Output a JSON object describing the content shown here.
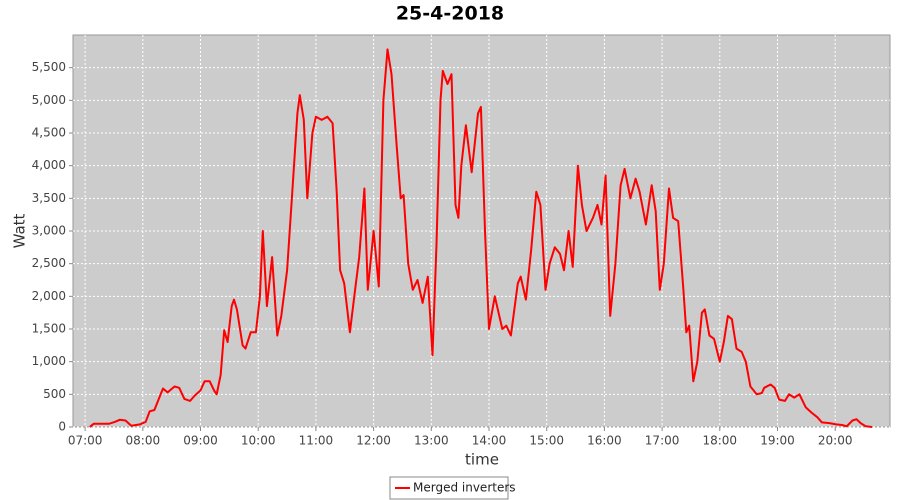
{
  "chart_data": {
    "type": "line",
    "title": "25-4-2018",
    "xlabel": "time",
    "ylabel": "Watt",
    "x": [
      7.08,
      7.15,
      7.25,
      7.42,
      7.52,
      7.6,
      7.7,
      7.8,
      7.95,
      8.05,
      8.12,
      8.2,
      8.3,
      8.35,
      8.43,
      8.55,
      8.63,
      8.72,
      8.82,
      8.9,
      9.0,
      9.07,
      9.16,
      9.24,
      9.28,
      9.35,
      9.41,
      9.47,
      9.54,
      9.58,
      9.63,
      9.73,
      9.78,
      9.87,
      9.96,
      10.03,
      10.08,
      10.15,
      10.24,
      10.33,
      10.4,
      10.5,
      10.59,
      10.68,
      10.72,
      10.79,
      10.85,
      10.94,
      11.0,
      11.1,
      11.2,
      11.29,
      11.36,
      11.42,
      11.49,
      11.59,
      11.68,
      11.75,
      11.84,
      11.9,
      12.0,
      12.09,
      12.17,
      12.24,
      12.31,
      12.4,
      12.47,
      12.52,
      12.6,
      12.68,
      12.76,
      12.85,
      12.94,
      13.02,
      13.09,
      13.16,
      13.2,
      13.28,
      13.35,
      13.42,
      13.47,
      13.52,
      13.6,
      13.7,
      13.81,
      13.86,
      13.93,
      14.0,
      14.1,
      14.23,
      14.3,
      14.38,
      14.5,
      14.55,
      14.64,
      14.73,
      14.82,
      14.89,
      14.98,
      15.05,
      15.14,
      15.23,
      15.3,
      15.38,
      15.45,
      15.54,
      15.61,
      15.69,
      15.8,
      15.88,
      15.95,
      16.02,
      16.1,
      16.19,
      16.28,
      16.35,
      16.45,
      16.54,
      16.61,
      16.72,
      16.82,
      16.89,
      16.96,
      17.03,
      17.12,
      17.19,
      17.28,
      17.37,
      17.42,
      17.47,
      17.54,
      17.61,
      17.69,
      17.74,
      17.82,
      17.9,
      18.0,
      18.07,
      18.14,
      18.21,
      18.29,
      18.38,
      18.45,
      18.53,
      18.64,
      18.73,
      18.77,
      18.88,
      18.95,
      19.03,
      19.13,
      19.2,
      19.29,
      19.38,
      19.49,
      19.59,
      19.69,
      19.77,
      19.9,
      20.02,
      20.12,
      20.2,
      20.3,
      20.37,
      20.44,
      20.53,
      20.64
    ],
    "series": [
      {
        "name": "Merged inverters",
        "color": "#ff0000",
        "values": [
          0,
          50,
          50,
          50,
          80,
          110,
          100,
          20,
          40,
          80,
          240,
          260,
          480,
          590,
          530,
          620,
          600,
          430,
          400,
          480,
          560,
          700,
          700,
          550,
          500,
          800,
          1480,
          1300,
          1850,
          1950,
          1800,
          1250,
          1200,
          1450,
          1450,
          2000,
          3000,
          1850,
          2600,
          1400,
          1700,
          2400,
          3600,
          4800,
          5080,
          4700,
          3500,
          4500,
          4750,
          4700,
          4750,
          4650,
          3600,
          2400,
          2200,
          1450,
          2100,
          2600,
          3650,
          2100,
          3000,
          2150,
          5000,
          5780,
          5400,
          4300,
          3500,
          3550,
          2500,
          2100,
          2250,
          1900,
          2300,
          1100,
          2800,
          5000,
          5450,
          5250,
          5400,
          3400,
          3200,
          4000,
          4620,
          3900,
          4800,
          4900,
          3000,
          1500,
          2000,
          1500,
          1550,
          1400,
          2200,
          2300,
          1950,
          2700,
          3600,
          3400,
          2100,
          2500,
          2750,
          2650,
          2400,
          3000,
          2450,
          4000,
          3400,
          3000,
          3200,
          3400,
          3100,
          3850,
          1700,
          2500,
          3700,
          3950,
          3500,
          3800,
          3600,
          3100,
          3700,
          3300,
          2100,
          2500,
          3650,
          3200,
          3150,
          2100,
          1450,
          1550,
          700,
          1000,
          1750,
          1800,
          1400,
          1350,
          1000,
          1300,
          1700,
          1650,
          1200,
          1150,
          1000,
          620,
          500,
          520,
          600,
          650,
          600,
          420,
          400,
          500,
          450,
          500,
          300,
          220,
          150,
          70,
          60,
          40,
          30,
          10,
          100,
          120,
          60,
          10,
          0
        ]
      }
    ],
    "xlim": [
      6.79,
      20.95
    ],
    "xticks": [
      {
        "value": 7,
        "label": "07:00"
      },
      {
        "value": 8,
        "label": "08:00"
      },
      {
        "value": 9,
        "label": "09:00"
      },
      {
        "value": 10,
        "label": "10:00"
      },
      {
        "value": 11,
        "label": "11:00"
      },
      {
        "value": 12,
        "label": "12:00"
      },
      {
        "value": 13,
        "label": "13:00"
      },
      {
        "value": 14,
        "label": "14:00"
      },
      {
        "value": 15,
        "label": "15:00"
      },
      {
        "value": 16,
        "label": "16:00"
      },
      {
        "value": 17,
        "label": "17:00"
      },
      {
        "value": 18,
        "label": "18:00"
      },
      {
        "value": 19,
        "label": "19:00"
      },
      {
        "value": 20,
        "label": "20:00"
      }
    ],
    "ylim": [
      0,
      6000
    ],
    "yticks": [
      0,
      500,
      {
        "value": 1000,
        "label": "1,000"
      },
      {
        "value": 1500,
        "label": "1,500"
      },
      {
        "value": 2000,
        "label": "2,000"
      },
      {
        "value": 2500,
        "label": "2,500"
      },
      {
        "value": 3000,
        "label": "3,000"
      },
      {
        "value": 3500,
        "label": "3,500"
      },
      {
        "value": 4000,
        "label": "4,000"
      },
      {
        "value": 4500,
        "label": "4,500"
      },
      {
        "value": 5000,
        "label": "5,000"
      },
      {
        "value": 5500,
        "label": "5,500"
      }
    ],
    "grid": true,
    "legend": "bottom"
  }
}
